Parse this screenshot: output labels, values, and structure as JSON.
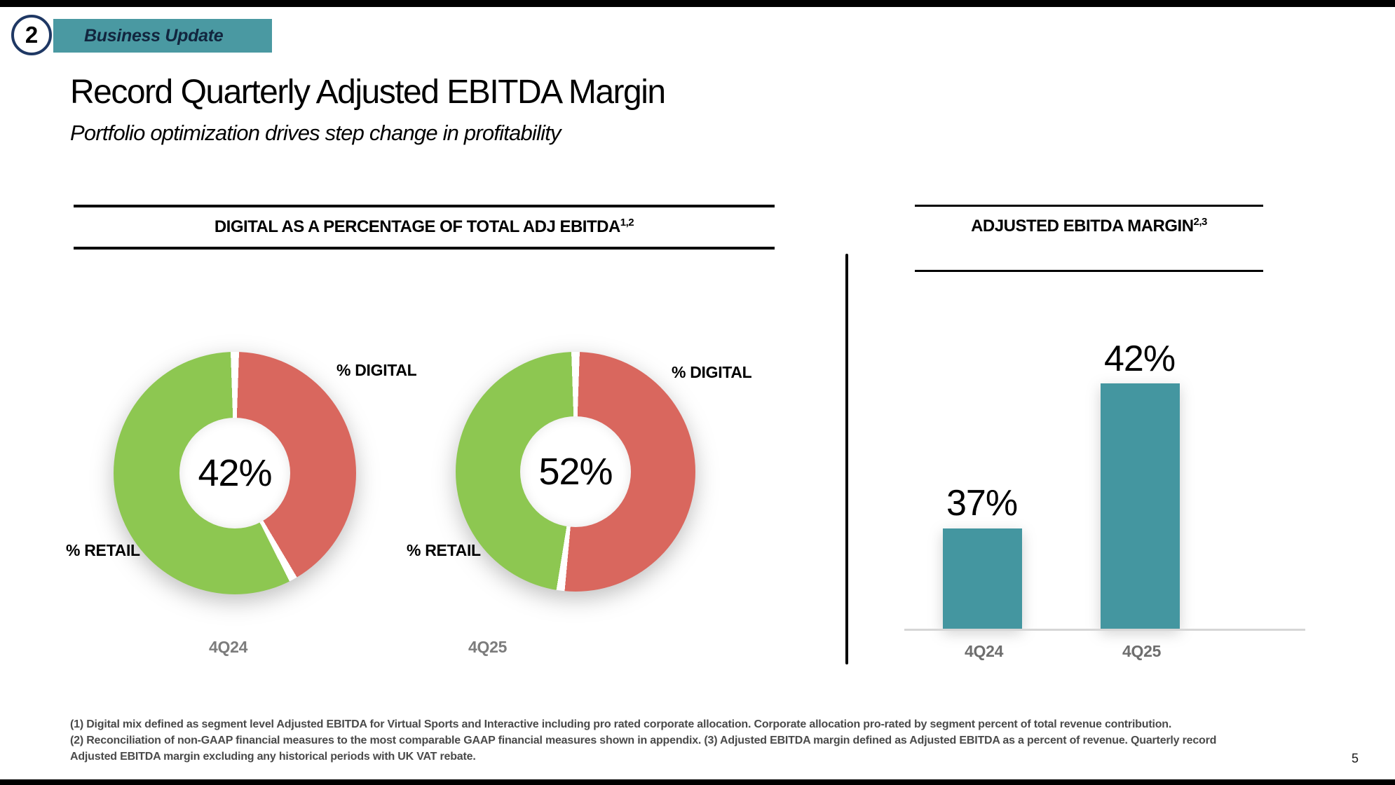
{
  "slide": {
    "badge_number": "2",
    "tab_label": "Business Update",
    "title": "Record Quarterly Adjusted EBITDA Margin",
    "subtitle": "Portfolio optimization drives step change in profitability",
    "page_number": "5"
  },
  "left_panel": {
    "header": "DIGITAL AS A PERCENTAGE OF TOTAL ADJ EBITDA",
    "header_superscript": "1,2",
    "donuts": [
      {
        "period": "4Q24",
        "center_label": "42%",
        "digital_pct": 42,
        "retail_pct": 58,
        "digital_label": "% DIGITAL",
        "retail_label": "% RETAIL"
      },
      {
        "period": "4Q25",
        "center_label": "52%",
        "digital_pct": 52,
        "retail_pct": 48,
        "digital_label": "% DIGITAL",
        "retail_label": "% RETAIL"
      }
    ]
  },
  "right_panel": {
    "header": "ADJUSTED EBITDA MARGIN",
    "header_superscript": "2,3",
    "bars": [
      {
        "period": "4Q24",
        "label": "37%",
        "value": 37
      },
      {
        "period": "4Q25",
        "label": "42%",
        "value": 42
      }
    ]
  },
  "footnotes": {
    "line1": "(1) Digital mix defined as segment level Adjusted EBITDA for Virtual Sports and Interactive including pro rated corporate allocation. Corporate allocation pro-rated by segment percent of total revenue contribution.",
    "line2": "(2) Reconciliation of non-GAAP financial measures to the most comparable GAAP financial measures shown in appendix. (3) Adjusted EBITDA margin defined as Adjusted EBITDA as a percent of revenue. Quarterly record",
    "line3": "Adjusted EBITDA margin excluding any historical periods with UK VAT rebate."
  },
  "colors": {
    "accent_teal": "#4A99A2",
    "bar_teal": "#4496A0",
    "digital_red": "#D9675E",
    "retail_green": "#8DC751",
    "navy": "#1F3864",
    "period_gray": "#7C7C7C",
    "footnote_gray": "#4A4A4A",
    "baseline_gray": "#D6D6D6"
  },
  "chart_data": [
    {
      "type": "pie",
      "subtype": "donut",
      "title": "DIGITAL AS A PERCENTAGE OF TOTAL ADJ EBITDA (1,2)",
      "period": "4Q24",
      "center_label": "42%",
      "slices": [
        {
          "label": "% DIGITAL",
          "value": 42,
          "color": "#D9675E"
        },
        {
          "label": "% RETAIL",
          "value": 58,
          "color": "#8DC751"
        }
      ],
      "start_angle_deg": 0,
      "direction": "clockwise",
      "legend_position": "outside-callouts"
    },
    {
      "type": "pie",
      "subtype": "donut",
      "title": "DIGITAL AS A PERCENTAGE OF TOTAL ADJ EBITDA (1,2)",
      "period": "4Q25",
      "center_label": "52%",
      "slices": [
        {
          "label": "% DIGITAL",
          "value": 52,
          "color": "#D9675E"
        },
        {
          "label": "% RETAIL",
          "value": 48,
          "color": "#8DC751"
        }
      ],
      "start_angle_deg": 0,
      "direction": "clockwise",
      "legend_position": "outside-callouts"
    },
    {
      "type": "bar",
      "title": "ADJUSTED EBITDA MARGIN (2,3)",
      "categories": [
        "4Q24",
        "4Q25"
      ],
      "values": [
        37,
        42
      ],
      "data_labels": [
        "37%",
        "42%"
      ],
      "unit": "%",
      "bar_color": "#4496A0",
      "xlabel": "",
      "ylabel": "",
      "grid": false,
      "value_axis_visible": false,
      "note": "value axis truncated (does not start at 0)"
    }
  ]
}
